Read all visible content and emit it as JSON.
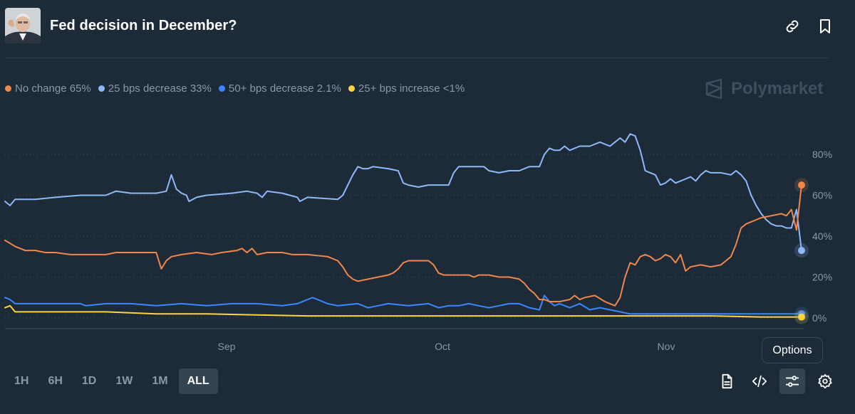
{
  "header": {
    "title": "Fed decision in December?",
    "avatar_icon": "person-portrait-icon",
    "link_icon": "link-icon",
    "bookmark_icon": "bookmark-icon"
  },
  "brand": {
    "name": "Polymarket",
    "icon": "polymarket-logo-icon"
  },
  "colors": {
    "background": "#1d2b39",
    "orange": "#f0874a",
    "light_blue": "#8fb8f7",
    "blue": "#3a86ff",
    "yellow": "#ffd43b"
  },
  "time_ranges": [
    "1H",
    "6H",
    "1D",
    "1W",
    "1M",
    "ALL"
  ],
  "active_range": "ALL",
  "toolbar": {
    "tooltip": "Options",
    "icons": [
      "document-icon",
      "embed-code-icon",
      "options-sliders-icon",
      "settings-gear-icon"
    ]
  },
  "chart_data": {
    "type": "line",
    "title": "Fed decision in December?",
    "x_ticks": [
      "Sep",
      "Oct",
      "Nov"
    ],
    "y_ticks": [
      "80%",
      "60%",
      "40%",
      "20%",
      "0%"
    ],
    "ylim": [
      0,
      90
    ],
    "grid": true,
    "legend": "top-left",
    "series": [
      {
        "name": "25 bps decrease",
        "legend_label": "25 bps decrease 33%",
        "final": 33,
        "color": "#8fb8f7",
        "points": [
          [
            0,
            57
          ],
          [
            1,
            55
          ],
          [
            2,
            58
          ],
          [
            6,
            58
          ],
          [
            10,
            59
          ],
          [
            15,
            60
          ],
          [
            20,
            60
          ],
          [
            22,
            62
          ],
          [
            25,
            61
          ],
          [
            28,
            61
          ],
          [
            30,
            61
          ],
          [
            32,
            62
          ],
          [
            33,
            70
          ],
          [
            34,
            63
          ],
          [
            35,
            61
          ],
          [
            36,
            60
          ],
          [
            36.5,
            57
          ],
          [
            38,
            59
          ],
          [
            40,
            60
          ],
          [
            45,
            61
          ],
          [
            48,
            62
          ],
          [
            50,
            61
          ],
          [
            51,
            59
          ],
          [
            52,
            62
          ],
          [
            55,
            61
          ],
          [
            58,
            59
          ],
          [
            58.5,
            57
          ],
          [
            60,
            59
          ],
          [
            66,
            58
          ],
          [
            67,
            60
          ],
          [
            68,
            65
          ],
          [
            69,
            70
          ],
          [
            70,
            74
          ],
          [
            71,
            73
          ],
          [
            72,
            73
          ],
          [
            73,
            74
          ],
          [
            76,
            73
          ],
          [
            78,
            72
          ],
          [
            79,
            66
          ],
          [
            80,
            65
          ],
          [
            82,
            64
          ],
          [
            84,
            65
          ],
          [
            88,
            65
          ],
          [
            89,
            71
          ],
          [
            90,
            74
          ],
          [
            92,
            74
          ],
          [
            95,
            74
          ],
          [
            96,
            72
          ],
          [
            98,
            71
          ],
          [
            100,
            72
          ],
          [
            102,
            72
          ],
          [
            104,
            74
          ],
          [
            106,
            74
          ],
          [
            107,
            80
          ],
          [
            108,
            83
          ],
          [
            109,
            82
          ],
          [
            110,
            82
          ],
          [
            111,
            84
          ],
          [
            112,
            82
          ],
          [
            114,
            84
          ],
          [
            116,
            84
          ],
          [
            118,
            86
          ],
          [
            120,
            84
          ],
          [
            121,
            86
          ],
          [
            122,
            88
          ],
          [
            123,
            86
          ],
          [
            124,
            90
          ],
          [
            125,
            89
          ],
          [
            126,
            82
          ],
          [
            127,
            72
          ],
          [
            128,
            71
          ],
          [
            129,
            70
          ],
          [
            130,
            65
          ],
          [
            131,
            66
          ],
          [
            132,
            68
          ],
          [
            133,
            66
          ],
          [
            134,
            67
          ],
          [
            135,
            68
          ],
          [
            136,
            69
          ],
          [
            137,
            67
          ],
          [
            138,
            70
          ],
          [
            139,
            72
          ],
          [
            140,
            71
          ],
          [
            142,
            71
          ],
          [
            144,
            70
          ],
          [
            145,
            72
          ],
          [
            146,
            70
          ],
          [
            147,
            67
          ],
          [
            148,
            60
          ],
          [
            149,
            55
          ],
          [
            150,
            51
          ],
          [
            151,
            48
          ],
          [
            152,
            46
          ],
          [
            153,
            45
          ],
          [
            154,
            45
          ],
          [
            155,
            44
          ],
          [
            156,
            44
          ],
          [
            157,
            53
          ],
          [
            158,
            33
          ]
        ]
      },
      {
        "name": "No change",
        "legend_label": "No change 65%",
        "final": 65,
        "color": "#f0874a",
        "points": [
          [
            0,
            38
          ],
          [
            2,
            35
          ],
          [
            4,
            33
          ],
          [
            6,
            33
          ],
          [
            8,
            32
          ],
          [
            10,
            32
          ],
          [
            13,
            31
          ],
          [
            16,
            31
          ],
          [
            20,
            31
          ],
          [
            22,
            32
          ],
          [
            25,
            32
          ],
          [
            28,
            32
          ],
          [
            30,
            32
          ],
          [
            31,
            24
          ],
          [
            32,
            28
          ],
          [
            33,
            30
          ],
          [
            35,
            31
          ],
          [
            38,
            32
          ],
          [
            41,
            31
          ],
          [
            43,
            32
          ],
          [
            46,
            33
          ],
          [
            47,
            34
          ],
          [
            48,
            32
          ],
          [
            49,
            34
          ],
          [
            50,
            31
          ],
          [
            52,
            32
          ],
          [
            55,
            32
          ],
          [
            57,
            31
          ],
          [
            60,
            31
          ],
          [
            64,
            30
          ],
          [
            66,
            28
          ],
          [
            67,
            25
          ],
          [
            68,
            21
          ],
          [
            69,
            19
          ],
          [
            70,
            18
          ],
          [
            72,
            19
          ],
          [
            74,
            20
          ],
          [
            76,
            21
          ],
          [
            77,
            22
          ],
          [
            78,
            24
          ],
          [
            79,
            27
          ],
          [
            80,
            28
          ],
          [
            82,
            28
          ],
          [
            84,
            28
          ],
          [
            85,
            26
          ],
          [
            86,
            22
          ],
          [
            87,
            21
          ],
          [
            88,
            21
          ],
          [
            90,
            21
          ],
          [
            92,
            21
          ],
          [
            93,
            20
          ],
          [
            94,
            21
          ],
          [
            96,
            21
          ],
          [
            98,
            20
          ],
          [
            100,
            20
          ],
          [
            102,
            19
          ],
          [
            103,
            17
          ],
          [
            104,
            14
          ],
          [
            105,
            12
          ],
          [
            106,
            9
          ],
          [
            107,
            9
          ],
          [
            108,
            8
          ],
          [
            110,
            8
          ],
          [
            112,
            9
          ],
          [
            113,
            11
          ],
          [
            114,
            9
          ],
          [
            115,
            10
          ],
          [
            117,
            11
          ],
          [
            119,
            8
          ],
          [
            120,
            7
          ],
          [
            121,
            6
          ],
          [
            122,
            10
          ],
          [
            123,
            20
          ],
          [
            124,
            27
          ],
          [
            125,
            26
          ],
          [
            126,
            30
          ],
          [
            127,
            31
          ],
          [
            128,
            30
          ],
          [
            129,
            28
          ],
          [
            130,
            29
          ],
          [
            131,
            31
          ],
          [
            132,
            30
          ],
          [
            133,
            27
          ],
          [
            134,
            31
          ],
          [
            135,
            23
          ],
          [
            136,
            25
          ],
          [
            138,
            26
          ],
          [
            140,
            25
          ],
          [
            142,
            26
          ],
          [
            143,
            28
          ],
          [
            144,
            30
          ],
          [
            145,
            36
          ],
          [
            146,
            44
          ],
          [
            147,
            46
          ],
          [
            148,
            47
          ],
          [
            149,
            48
          ],
          [
            150,
            49
          ],
          [
            152,
            50
          ],
          [
            154,
            51
          ],
          [
            155,
            50
          ],
          [
            156,
            53
          ],
          [
            157,
            43
          ],
          [
            158,
            65
          ]
        ]
      },
      {
        "name": "50+ bps decrease",
        "legend_label": "50+ bps decrease 2.1%",
        "final": 2.1,
        "color": "#3a86ff",
        "points": [
          [
            0,
            10
          ],
          [
            1,
            9
          ],
          [
            2,
            7
          ],
          [
            6,
            7
          ],
          [
            10,
            7
          ],
          [
            15,
            7
          ],
          [
            16,
            6
          ],
          [
            20,
            7
          ],
          [
            25,
            7
          ],
          [
            30,
            6
          ],
          [
            35,
            7
          ],
          [
            40,
            6
          ],
          [
            45,
            7
          ],
          [
            50,
            7
          ],
          [
            55,
            6
          ],
          [
            58,
            7
          ],
          [
            60,
            9
          ],
          [
            61,
            10
          ],
          [
            62,
            9
          ],
          [
            63,
            8
          ],
          [
            64,
            7
          ],
          [
            66,
            6
          ],
          [
            70,
            7
          ],
          [
            72,
            5
          ],
          [
            74,
            6
          ],
          [
            76,
            7
          ],
          [
            80,
            6
          ],
          [
            84,
            7
          ],
          [
            86,
            5
          ],
          [
            88,
            6
          ],
          [
            90,
            6
          ],
          [
            92,
            7
          ],
          [
            94,
            6
          ],
          [
            96,
            5
          ],
          [
            98,
            6
          ],
          [
            100,
            7
          ],
          [
            102,
            7
          ],
          [
            104,
            5
          ],
          [
            106,
            4
          ],
          [
            107,
            11
          ],
          [
            108,
            8
          ],
          [
            109,
            6
          ],
          [
            110,
            7
          ],
          [
            112,
            5
          ],
          [
            114,
            7
          ],
          [
            116,
            4
          ],
          [
            118,
            5
          ],
          [
            120,
            4
          ],
          [
            122,
            3
          ],
          [
            124,
            2
          ],
          [
            126,
            2
          ],
          [
            130,
            2
          ],
          [
            135,
            2
          ],
          [
            140,
            2
          ],
          [
            145,
            2
          ],
          [
            150,
            2
          ],
          [
            155,
            2
          ],
          [
            158,
            2
          ]
        ]
      },
      {
        "name": "25+ bps increase",
        "legend_label": "25+ bps increase <1%",
        "final": 0.5,
        "color": "#ffd43b",
        "points": [
          [
            0,
            5
          ],
          [
            1,
            6
          ],
          [
            2,
            3
          ],
          [
            10,
            3
          ],
          [
            20,
            3
          ],
          [
            30,
            2
          ],
          [
            40,
            2
          ],
          [
            50,
            1.5
          ],
          [
            60,
            1
          ],
          [
            70,
            1
          ],
          [
            80,
            1
          ],
          [
            90,
            1
          ],
          [
            100,
            1
          ],
          [
            110,
            1
          ],
          [
            120,
            1
          ],
          [
            130,
            1
          ],
          [
            140,
            1
          ],
          [
            150,
            0.5
          ],
          [
            158,
            0.5
          ]
        ]
      }
    ]
  }
}
